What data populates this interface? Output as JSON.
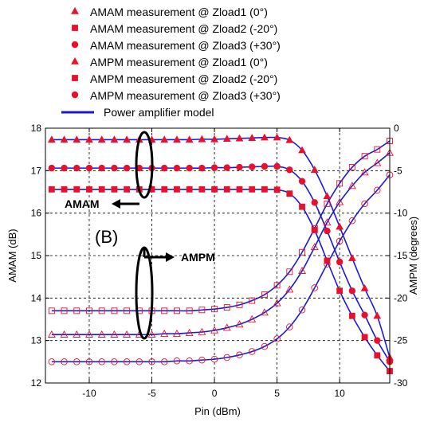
{
  "chart_data": {
    "type": "line",
    "xlabel": "Pin (dBm)",
    "ylabel": "AMAM (dB)",
    "y2label": "AMPM (degrees)",
    "xlim": [
      -13.5,
      14
    ],
    "ylim": [
      12,
      18
    ],
    "y2lim": [
      -30,
      0
    ],
    "xticks": [
      -10,
      -5,
      0,
      5,
      10
    ],
    "yticks": [
      12,
      13,
      14,
      15,
      16,
      17,
      18
    ],
    "y2ticks": [
      0,
      -5,
      -10,
      -15,
      -20,
      -25,
      -30
    ],
    "grid": true,
    "legend_position": "top",
    "marker_color": "#e8102a",
    "model_color": "#1a1ad6",
    "legend": [
      {
        "label": "AMAM measurement @ Zload1 (0°)",
        "marker": "triangle"
      },
      {
        "label": "AMAM measurement @ Zload2 (-20°)",
        "marker": "square"
      },
      {
        "label": "AMAM measurement @ Zload3 (+30°)",
        "marker": "circle"
      },
      {
        "label": "AMPM measurement @ Zload1 (0°)",
        "marker": "triangle"
      },
      {
        "label": "AMPM measurement @ Zload2 (-20°)",
        "marker": "square"
      },
      {
        "label": "AMPM measurement @ Zload3 (+30°)",
        "marker": "circle"
      },
      {
        "label": "Power amplifier model",
        "marker": "line"
      }
    ],
    "annotations": {
      "amam": "AMAM",
      "ampm": "AMPM",
      "panel": "(B)"
    },
    "x": [
      -13,
      -12,
      -11,
      -10,
      -9,
      -8,
      -7,
      -6,
      -5,
      -4,
      -3,
      -2,
      -1,
      0,
      1,
      2,
      3,
      4,
      5,
      6,
      7,
      8,
      9,
      10,
      11,
      12,
      13,
      14
    ],
    "amam_series": [
      {
        "marker": "triangle",
        "axis": "left",
        "values": [
          17.73,
          17.73,
          17.73,
          17.73,
          17.73,
          17.73,
          17.73,
          17.73,
          17.73,
          17.73,
          17.73,
          17.73,
          17.74,
          17.74,
          17.75,
          17.76,
          17.77,
          17.78,
          17.78,
          17.72,
          17.48,
          17.02,
          16.4,
          15.68,
          14.94,
          14.23,
          13.58,
          12.6
        ]
      },
      {
        "marker": "circle",
        "axis": "left",
        "values": [
          17.06,
          17.06,
          17.06,
          17.06,
          17.06,
          17.06,
          17.06,
          17.06,
          17.06,
          17.06,
          17.06,
          17.06,
          17.06,
          17.07,
          17.07,
          17.08,
          17.09,
          17.1,
          17.1,
          17.02,
          16.75,
          16.25,
          15.58,
          14.85,
          14.17,
          13.6,
          13.0,
          12.5
        ]
      },
      {
        "marker": "square",
        "axis": "left",
        "values": [
          16.56,
          16.56,
          16.56,
          16.56,
          16.56,
          16.56,
          16.56,
          16.56,
          16.56,
          16.56,
          16.56,
          16.56,
          16.56,
          16.56,
          16.56,
          16.56,
          16.56,
          16.56,
          16.55,
          16.46,
          16.15,
          15.6,
          14.88,
          14.17,
          13.58,
          13.08,
          12.65,
          12.28
        ]
      }
    ],
    "ampm_series": [
      {
        "marker": "square",
        "axis": "right",
        "values": [
          -21.5,
          -21.5,
          -21.5,
          -21.5,
          -21.5,
          -21.5,
          -21.5,
          -21.5,
          -21.5,
          -21.5,
          -21.5,
          -21.5,
          -21.4,
          -21.3,
          -21.1,
          -20.8,
          -20.3,
          -19.6,
          -18.5,
          -16.9,
          -14.6,
          -11.8,
          -8.9,
          -6.5,
          -4.6,
          -3.3,
          -2.5,
          -1.5
        ]
      },
      {
        "marker": "triangle",
        "axis": "right",
        "values": [
          -24.3,
          -24.3,
          -24.3,
          -24.3,
          -24.3,
          -24.3,
          -24.3,
          -24.3,
          -24.3,
          -24.2,
          -24.2,
          -24.1,
          -24.0,
          -23.8,
          -23.5,
          -23.1,
          -22.5,
          -21.7,
          -20.6,
          -19.0,
          -16.8,
          -14.0,
          -11.1,
          -8.7,
          -6.8,
          -5.2,
          -4.1,
          -2.9
        ]
      },
      {
        "marker": "circle",
        "axis": "right",
        "values": [
          -27.5,
          -27.5,
          -27.5,
          -27.5,
          -27.5,
          -27.5,
          -27.5,
          -27.5,
          -27.5,
          -27.5,
          -27.4,
          -27.4,
          -27.3,
          -27.2,
          -27.0,
          -26.7,
          -26.3,
          -25.7,
          -24.8,
          -23.4,
          -21.4,
          -18.8,
          -16.0,
          -13.3,
          -10.9,
          -8.9,
          -7.3,
          -5.5
        ]
      }
    ]
  }
}
